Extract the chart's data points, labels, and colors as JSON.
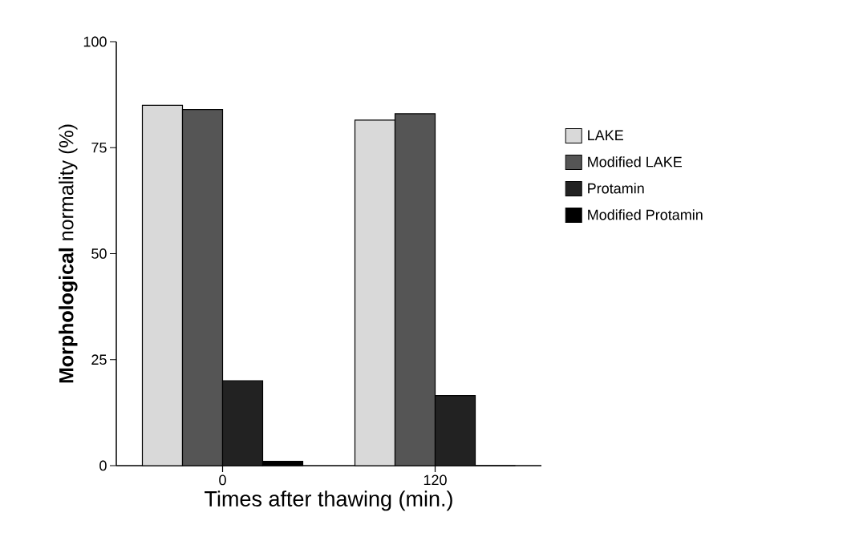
{
  "chart_data": {
    "type": "bar",
    "xlabel": "Times after thawing (min.)",
    "ylabel": "**Morphological** normality  (%)",
    "categories": [
      "0",
      "120"
    ],
    "series": [
      {
        "name": "LAKE",
        "color": "#d9d9d9",
        "values": [
          85,
          81.5
        ]
      },
      {
        "name": "Modified LAKE",
        "color": "#555555",
        "values": [
          84,
          83
        ]
      },
      {
        "name": "Protamin",
        "color": "#222222",
        "values": [
          20,
          16.5
        ]
      },
      {
        "name": "Modified Protamin",
        "color": "#000000",
        "values": [
          1,
          0
        ]
      }
    ],
    "ylim": [
      0,
      100
    ],
    "yticks": [
      0,
      25,
      50,
      75,
      100
    ],
    "legend": "right"
  }
}
